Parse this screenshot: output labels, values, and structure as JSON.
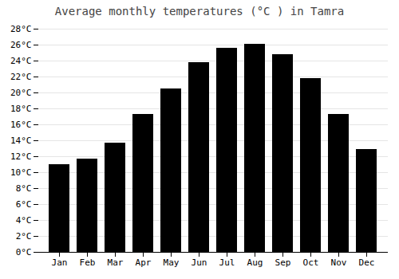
{
  "chart_data": {
    "type": "bar",
    "title": "Average monthly temperatures (°C ) in Tamra",
    "categories": [
      "Jan",
      "Feb",
      "Mar",
      "Apr",
      "May",
      "Jun",
      "Jul",
      "Aug",
      "Sep",
      "Oct",
      "Nov",
      "Dec"
    ],
    "values": [
      11.0,
      11.7,
      13.7,
      17.3,
      20.5,
      23.8,
      25.6,
      26.1,
      24.8,
      21.8,
      17.3,
      12.9
    ],
    "ylim": [
      0,
      28
    ],
    "yticks": [
      {
        "value": 0,
        "label": "0°C"
      },
      {
        "value": 2,
        "label": "2°C"
      },
      {
        "value": 4,
        "label": "4°C"
      },
      {
        "value": 6,
        "label": "6°C"
      },
      {
        "value": 8,
        "label": "8°C"
      },
      {
        "value": 10,
        "label": "10°C"
      },
      {
        "value": 12,
        "label": "12°C"
      },
      {
        "value": 14,
        "label": "14°C"
      },
      {
        "value": 16,
        "label": "16°C"
      },
      {
        "value": 18,
        "label": "18°C"
      },
      {
        "value": 20,
        "label": "20°C"
      },
      {
        "value": 22,
        "label": "22°C"
      },
      {
        "value": 24,
        "label": "24°C"
      },
      {
        "value": 26,
        "label": "26°C"
      },
      {
        "value": 28,
        "label": "28°C"
      }
    ],
    "grid": true
  }
}
